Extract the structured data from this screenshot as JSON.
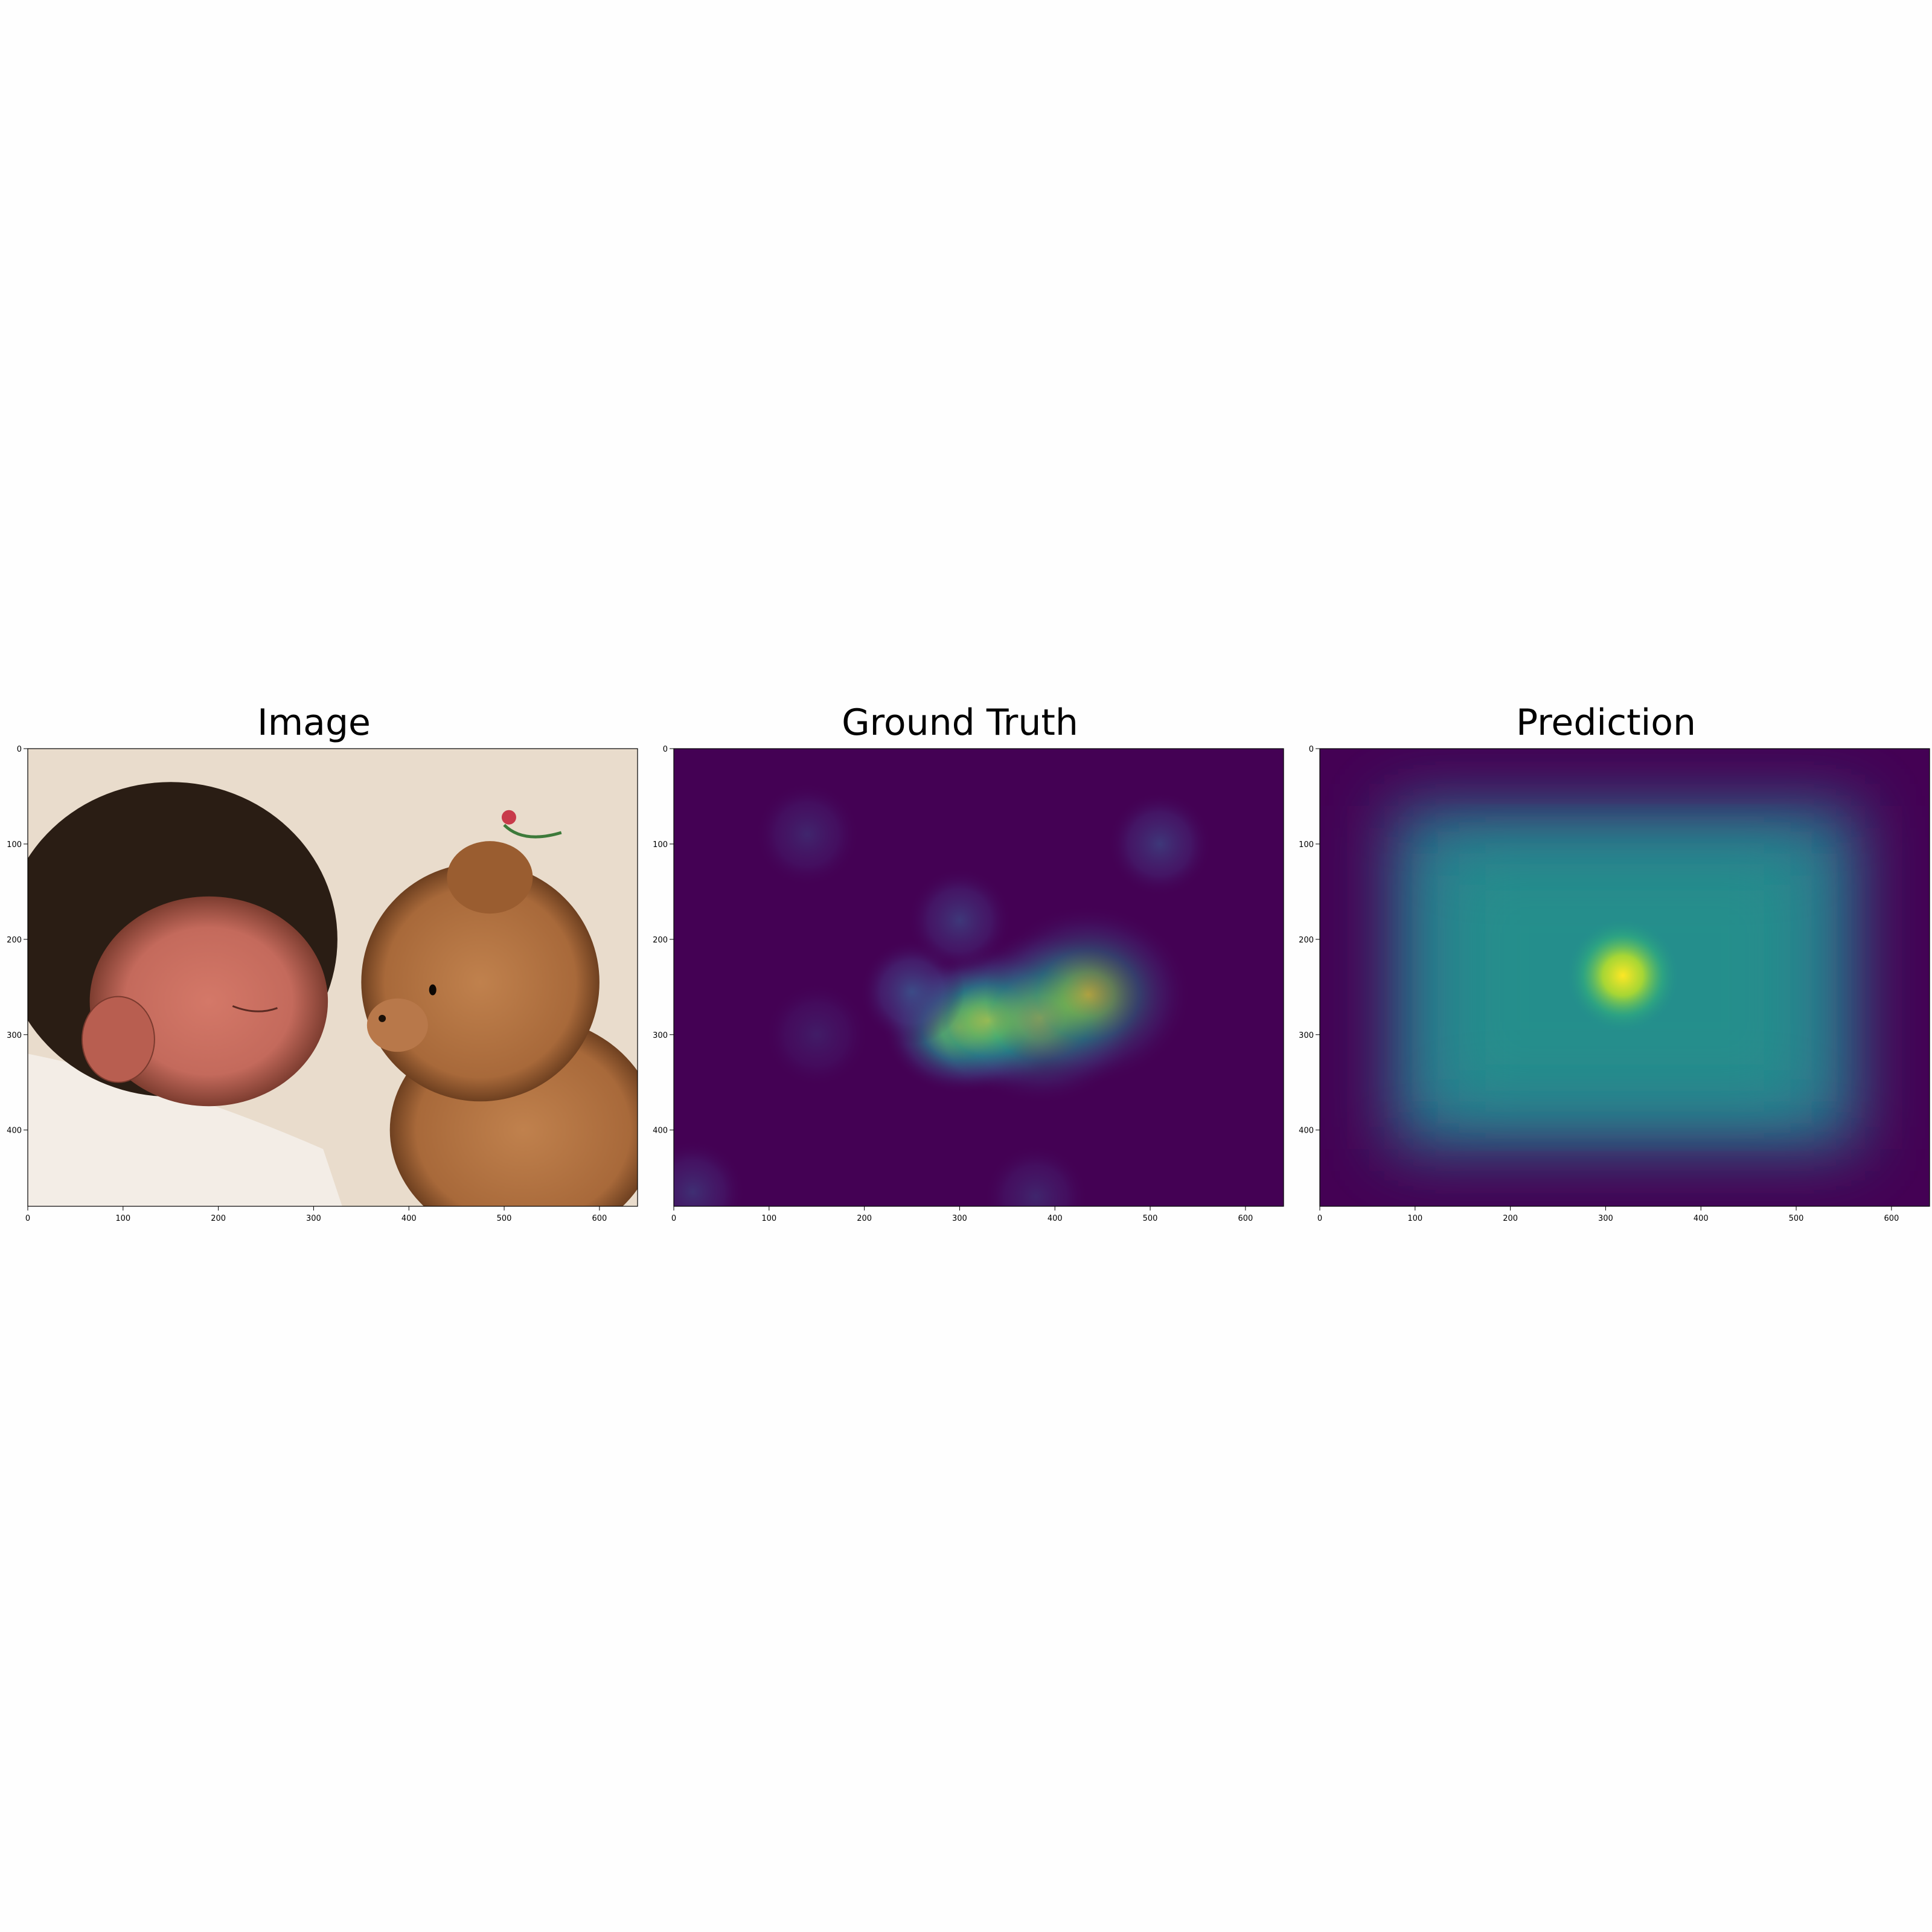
{
  "chart_data": [
    {
      "type": "image",
      "title": "Image",
      "xlim": [
        0,
        640
      ],
      "ylim": [
        480,
        0
      ],
      "xticks": [
        0,
        100,
        200,
        300,
        400,
        500,
        600
      ],
      "yticks": [
        0,
        100,
        200,
        300,
        400
      ],
      "content": "photo"
    },
    {
      "type": "heatmap",
      "title": "Ground Truth",
      "colormap": "viridis",
      "xlim": [
        0,
        640
      ],
      "ylim": [
        480,
        0
      ],
      "xticks": [
        0,
        100,
        200,
        300,
        400,
        500,
        600
      ],
      "yticks": [
        0,
        100,
        200,
        300,
        400
      ],
      "hotspots": [
        {
          "x": 300,
          "y": 292,
          "intensity": 1.0
        },
        {
          "x": 330,
          "y": 285,
          "intensity": 0.9
        },
        {
          "x": 385,
          "y": 282,
          "intensity": 0.65
        },
        {
          "x": 435,
          "y": 258,
          "intensity": 0.6
        },
        {
          "x": 250,
          "y": 255,
          "intensity": 0.45
        },
        {
          "x": 300,
          "y": 180,
          "intensity": 0.3
        },
        {
          "x": 510,
          "y": 100,
          "intensity": 0.3
        },
        {
          "x": 140,
          "y": 90,
          "intensity": 0.2
        },
        {
          "x": 150,
          "y": 300,
          "intensity": 0.15
        },
        {
          "x": 20,
          "y": 465,
          "intensity": 0.25
        },
        {
          "x": 380,
          "y": 470,
          "intensity": 0.2
        }
      ]
    },
    {
      "type": "heatmap",
      "title": "Prediction",
      "colormap": "viridis",
      "xlim": [
        0,
        640
      ],
      "ylim": [
        480,
        0
      ],
      "xticks": [
        0,
        100,
        200,
        300,
        400,
        500,
        600
      ],
      "yticks": [
        0,
        100,
        200,
        300,
        400
      ],
      "peak": {
        "x": 318,
        "y": 238,
        "intensity": 1.0
      },
      "background_region": {
        "x": [
          75,
          565
        ],
        "y": [
          60,
          420
        ],
        "intensity": 0.45
      }
    }
  ],
  "colors": {
    "viridis_low": "#440154",
    "viridis_mid": "#21918c",
    "viridis_high": "#fde725",
    "skin": "#c46a5c",
    "hair": "#2a1d14",
    "bear": "#a8693a",
    "blanket": "#f3ede6",
    "background": "#e9dccc"
  }
}
